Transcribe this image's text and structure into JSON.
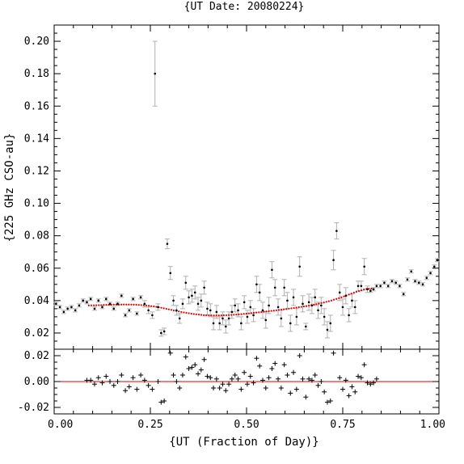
{
  "chart_data": [
    {
      "type": "scatter",
      "panel": "main",
      "title": "{UT Date: 20080224}",
      "ylabel": "{225 GHz CSO-au}",
      "xlim": [
        0.0,
        1.0
      ],
      "ylim": [
        0.01,
        0.21
      ],
      "x_ticks": [
        "0.00",
        "0.25",
        "0.50",
        "0.75",
        "1.00"
      ],
      "y_ticks": [
        "0.02",
        "0.04",
        "0.06",
        "0.08",
        "0.10",
        "0.12",
        "0.14",
        "0.16",
        "0.18",
        "0.20"
      ],
      "grid": false,
      "colors": {
        "points": "#000000",
        "errorbars": "#b0b0b0",
        "fit": "#e00000"
      },
      "points": [
        {
          "x": 0.005,
          "y": 0.038,
          "err": 0.001
        },
        {
          "x": 0.015,
          "y": 0.036,
          "err": 0.001
        },
        {
          "x": 0.025,
          "y": 0.033,
          "err": 0.001
        },
        {
          "x": 0.035,
          "y": 0.035,
          "err": 0.001
        },
        {
          "x": 0.045,
          "y": 0.036,
          "err": 0.001
        },
        {
          "x": 0.055,
          "y": 0.034,
          "err": 0.001
        },
        {
          "x": 0.065,
          "y": 0.037,
          "err": 0.001
        },
        {
          "x": 0.075,
          "y": 0.04,
          "err": 0.001
        },
        {
          "x": 0.085,
          "y": 0.039,
          "err": 0.001
        },
        {
          "x": 0.095,
          "y": 0.041,
          "err": 0.001
        },
        {
          "x": 0.105,
          "y": 0.035,
          "err": 0.001
        },
        {
          "x": 0.115,
          "y": 0.04,
          "err": 0.001
        },
        {
          "x": 0.125,
          "y": 0.036,
          "err": 0.001
        },
        {
          "x": 0.135,
          "y": 0.041,
          "err": 0.001
        },
        {
          "x": 0.145,
          "y": 0.038,
          "err": 0.001
        },
        {
          "x": 0.155,
          "y": 0.035,
          "err": 0.001
        },
        {
          "x": 0.165,
          "y": 0.038,
          "err": 0.001
        },
        {
          "x": 0.175,
          "y": 0.043,
          "err": 0.001
        },
        {
          "x": 0.185,
          "y": 0.031,
          "err": 0.001
        },
        {
          "x": 0.195,
          "y": 0.034,
          "err": 0.001
        },
        {
          "x": 0.205,
          "y": 0.041,
          "err": 0.001
        },
        {
          "x": 0.215,
          "y": 0.032,
          "err": 0.001
        },
        {
          "x": 0.225,
          "y": 0.042,
          "err": 0.001
        },
        {
          "x": 0.235,
          "y": 0.038,
          "err": 0.002
        },
        {
          "x": 0.245,
          "y": 0.034,
          "err": 0.002
        },
        {
          "x": 0.255,
          "y": 0.031,
          "err": 0.002
        },
        {
          "x": 0.262,
          "y": 0.18,
          "err": 0.02
        },
        {
          "x": 0.27,
          "y": 0.036,
          "err": 0.002
        },
        {
          "x": 0.278,
          "y": 0.02,
          "err": 0.002
        },
        {
          "x": 0.286,
          "y": 0.021,
          "err": 0.002
        },
        {
          "x": 0.294,
          "y": 0.075,
          "err": 0.003
        },
        {
          "x": 0.302,
          "y": 0.057,
          "err": 0.004
        },
        {
          "x": 0.31,
          "y": 0.04,
          "err": 0.003
        },
        {
          "x": 0.318,
          "y": 0.034,
          "err": 0.003
        },
        {
          "x": 0.326,
          "y": 0.029,
          "err": 0.003
        },
        {
          "x": 0.334,
          "y": 0.038,
          "err": 0.003
        },
        {
          "x": 0.342,
          "y": 0.051,
          "err": 0.004
        },
        {
          "x": 0.35,
          "y": 0.042,
          "err": 0.004
        },
        {
          "x": 0.358,
          "y": 0.043,
          "err": 0.004
        },
        {
          "x": 0.366,
          "y": 0.045,
          "err": 0.004
        },
        {
          "x": 0.374,
          "y": 0.038,
          "err": 0.004
        },
        {
          "x": 0.382,
          "y": 0.04,
          "err": 0.004
        },
        {
          "x": 0.39,
          "y": 0.048,
          "err": 0.004
        },
        {
          "x": 0.398,
          "y": 0.035,
          "err": 0.004
        },
        {
          "x": 0.406,
          "y": 0.034,
          "err": 0.004
        },
        {
          "x": 0.414,
          "y": 0.026,
          "err": 0.004
        },
        {
          "x": 0.422,
          "y": 0.033,
          "err": 0.004
        },
        {
          "x": 0.43,
          "y": 0.026,
          "err": 0.004
        },
        {
          "x": 0.438,
          "y": 0.029,
          "err": 0.004
        },
        {
          "x": 0.446,
          "y": 0.024,
          "err": 0.004
        },
        {
          "x": 0.454,
          "y": 0.029,
          "err": 0.004
        },
        {
          "x": 0.462,
          "y": 0.033,
          "err": 0.004
        },
        {
          "x": 0.47,
          "y": 0.037,
          "err": 0.004
        },
        {
          "x": 0.478,
          "y": 0.034,
          "err": 0.004
        },
        {
          "x": 0.486,
          "y": 0.026,
          "err": 0.004
        },
        {
          "x": 0.494,
          "y": 0.039,
          "err": 0.004
        },
        {
          "x": 0.502,
          "y": 0.03,
          "err": 0.004
        },
        {
          "x": 0.51,
          "y": 0.036,
          "err": 0.004
        },
        {
          "x": 0.518,
          "y": 0.031,
          "err": 0.004
        },
        {
          "x": 0.526,
          "y": 0.05,
          "err": 0.005
        },
        {
          "x": 0.534,
          "y": 0.045,
          "err": 0.005
        },
        {
          "x": 0.542,
          "y": 0.034,
          "err": 0.005
        },
        {
          "x": 0.55,
          "y": 0.028,
          "err": 0.005
        },
        {
          "x": 0.558,
          "y": 0.037,
          "err": 0.005
        },
        {
          "x": 0.566,
          "y": 0.059,
          "err": 0.005
        },
        {
          "x": 0.574,
          "y": 0.048,
          "err": 0.005
        },
        {
          "x": 0.582,
          "y": 0.036,
          "err": 0.005
        },
        {
          "x": 0.59,
          "y": 0.029,
          "err": 0.005
        },
        {
          "x": 0.598,
          "y": 0.048,
          "err": 0.005
        },
        {
          "x": 0.606,
          "y": 0.04,
          "err": 0.005
        },
        {
          "x": 0.614,
          "y": 0.026,
          "err": 0.005
        },
        {
          "x": 0.622,
          "y": 0.042,
          "err": 0.005
        },
        {
          "x": 0.63,
          "y": 0.03,
          "err": 0.005
        },
        {
          "x": 0.638,
          "y": 0.061,
          "err": 0.006
        },
        {
          "x": 0.646,
          "y": 0.038,
          "err": 0.005
        },
        {
          "x": 0.654,
          "y": 0.024,
          "err": 0.002
        },
        {
          "x": 0.662,
          "y": 0.039,
          "err": 0.005
        },
        {
          "x": 0.67,
          "y": 0.037,
          "err": 0.005
        },
        {
          "x": 0.678,
          "y": 0.042,
          "err": 0.005
        },
        {
          "x": 0.686,
          "y": 0.034,
          "err": 0.005
        },
        {
          "x": 0.694,
          "y": 0.037,
          "err": 0.005
        },
        {
          "x": 0.702,
          "y": 0.03,
          "err": 0.005
        },
        {
          "x": 0.71,
          "y": 0.022,
          "err": 0.005
        },
        {
          "x": 0.718,
          "y": 0.026,
          "err": 0.005
        },
        {
          "x": 0.726,
          "y": 0.065,
          "err": 0.006
        },
        {
          "x": 0.734,
          "y": 0.083,
          "err": 0.005
        },
        {
          "x": 0.742,
          "y": 0.045,
          "err": 0.005
        },
        {
          "x": 0.75,
          "y": 0.036,
          "err": 0.005
        },
        {
          "x": 0.758,
          "y": 0.043,
          "err": 0.005
        },
        {
          "x": 0.766,
          "y": 0.031,
          "err": 0.004
        },
        {
          "x": 0.774,
          "y": 0.04,
          "err": 0.004
        },
        {
          "x": 0.782,
          "y": 0.036,
          "err": 0.004
        },
        {
          "x": 0.79,
          "y": 0.049,
          "err": 0.003
        },
        {
          "x": 0.798,
          "y": 0.049,
          "err": 0.003
        },
        {
          "x": 0.806,
          "y": 0.061,
          "err": 0.005
        },
        {
          "x": 0.814,
          "y": 0.047,
          "err": 0.002
        },
        {
          "x": 0.822,
          "y": 0.046,
          "err": 0.001
        },
        {
          "x": 0.83,
          "y": 0.047,
          "err": 0.001
        },
        {
          "x": 0.838,
          "y": 0.049,
          "err": 0.001
        },
        {
          "x": 0.848,
          "y": 0.049,
          "err": 0.001
        },
        {
          "x": 0.858,
          "y": 0.051,
          "err": 0.001
        },
        {
          "x": 0.868,
          "y": 0.049,
          "err": 0.001
        },
        {
          "x": 0.878,
          "y": 0.052,
          "err": 0.001
        },
        {
          "x": 0.888,
          "y": 0.051,
          "err": 0.001
        },
        {
          "x": 0.898,
          "y": 0.049,
          "err": 0.001
        },
        {
          "x": 0.908,
          "y": 0.044,
          "err": 0.001
        },
        {
          "x": 0.918,
          "y": 0.053,
          "err": 0.001
        },
        {
          "x": 0.928,
          "y": 0.058,
          "err": 0.001
        },
        {
          "x": 0.938,
          "y": 0.052,
          "err": 0.001
        },
        {
          "x": 0.948,
          "y": 0.051,
          "err": 0.001
        },
        {
          "x": 0.958,
          "y": 0.05,
          "err": 0.001
        },
        {
          "x": 0.968,
          "y": 0.054,
          "err": 0.001
        },
        {
          "x": 0.978,
          "y": 0.057,
          "err": 0.001
        },
        {
          "x": 0.988,
          "y": 0.061,
          "err": 0.001
        },
        {
          "x": 0.996,
          "y": 0.065,
          "err": 0.001
        }
      ],
      "fit": {
        "x": [
          0.09,
          0.12,
          0.15,
          0.18,
          0.21,
          0.24,
          0.27,
          0.3,
          0.33,
          0.36,
          0.39,
          0.42,
          0.45,
          0.48,
          0.51,
          0.54,
          0.57,
          0.6,
          0.63,
          0.66,
          0.69,
          0.72,
          0.75,
          0.78,
          0.81,
          0.83
        ],
        "y": [
          0.037,
          0.0372,
          0.0375,
          0.0376,
          0.0375,
          0.037,
          0.036,
          0.0345,
          0.033,
          0.0318,
          0.031,
          0.0308,
          0.031,
          0.0315,
          0.0322,
          0.033,
          0.0338,
          0.0347,
          0.0357,
          0.0368,
          0.0382,
          0.04,
          0.0423,
          0.045,
          0.0472,
          0.0475
        ]
      }
    },
    {
      "type": "scatter",
      "panel": "residuals",
      "xlabel": "{UT (Fraction of Day)}",
      "xlim": [
        0.0,
        1.0
      ],
      "ylim": [
        -0.025,
        0.025
      ],
      "x_ticks": [
        "0.00",
        "0.25",
        "0.50",
        "0.75",
        "1.00"
      ],
      "y_ticks": [
        "-0.02",
        "0.00",
        "0.02"
      ],
      "zero_line": 0.0,
      "colors": {
        "points": "#000000",
        "zero_line": "#e00000"
      },
      "points": [
        {
          "x": 0.085,
          "y": 0.001
        },
        {
          "x": 0.095,
          "y": 0.001
        },
        {
          "x": 0.105,
          "y": -0.002
        },
        {
          "x": 0.115,
          "y": 0.003
        },
        {
          "x": 0.125,
          "y": -0.001
        },
        {
          "x": 0.135,
          "y": 0.004
        },
        {
          "x": 0.145,
          "y": 0.0
        },
        {
          "x": 0.155,
          "y": -0.003
        },
        {
          "x": 0.165,
          "y": 0.0
        },
        {
          "x": 0.175,
          "y": 0.005
        },
        {
          "x": 0.185,
          "y": -0.007
        },
        {
          "x": 0.195,
          "y": -0.004
        },
        {
          "x": 0.205,
          "y": 0.003
        },
        {
          "x": 0.215,
          "y": -0.006
        },
        {
          "x": 0.225,
          "y": 0.005
        },
        {
          "x": 0.235,
          "y": 0.001
        },
        {
          "x": 0.245,
          "y": -0.003
        },
        {
          "x": 0.255,
          "y": -0.006
        },
        {
          "x": 0.27,
          "y": 0.0
        },
        {
          "x": 0.278,
          "y": -0.016
        },
        {
          "x": 0.286,
          "y": -0.015
        },
        {
          "x": 0.302,
          "y": 0.022
        },
        {
          "x": 0.31,
          "y": 0.005
        },
        {
          "x": 0.318,
          "y": 0.0
        },
        {
          "x": 0.326,
          "y": -0.005
        },
        {
          "x": 0.334,
          "y": 0.005
        },
        {
          "x": 0.342,
          "y": 0.019
        },
        {
          "x": 0.35,
          "y": 0.01
        },
        {
          "x": 0.358,
          "y": 0.011
        },
        {
          "x": 0.366,
          "y": 0.013
        },
        {
          "x": 0.374,
          "y": 0.006
        },
        {
          "x": 0.382,
          "y": 0.009
        },
        {
          "x": 0.39,
          "y": 0.017
        },
        {
          "x": 0.398,
          "y": 0.004
        },
        {
          "x": 0.406,
          "y": 0.003
        },
        {
          "x": 0.414,
          "y": -0.005
        },
        {
          "x": 0.422,
          "y": 0.002
        },
        {
          "x": 0.43,
          "y": -0.005
        },
        {
          "x": 0.438,
          "y": -0.002
        },
        {
          "x": 0.446,
          "y": -0.007
        },
        {
          "x": 0.454,
          "y": -0.002
        },
        {
          "x": 0.462,
          "y": 0.002
        },
        {
          "x": 0.47,
          "y": 0.005
        },
        {
          "x": 0.478,
          "y": 0.002
        },
        {
          "x": 0.486,
          "y": -0.006
        },
        {
          "x": 0.494,
          "y": 0.007
        },
        {
          "x": 0.502,
          "y": -0.002
        },
        {
          "x": 0.51,
          "y": 0.004
        },
        {
          "x": 0.518,
          "y": -0.001
        },
        {
          "x": 0.526,
          "y": 0.018
        },
        {
          "x": 0.534,
          "y": 0.012
        },
        {
          "x": 0.542,
          "y": 0.001
        },
        {
          "x": 0.55,
          "y": -0.005
        },
        {
          "x": 0.558,
          "y": 0.003
        },
        {
          "x": 0.566,
          "y": 0.01
        },
        {
          "x": 0.574,
          "y": 0.014
        },
        {
          "x": 0.582,
          "y": 0.002
        },
        {
          "x": 0.59,
          "y": -0.005
        },
        {
          "x": 0.598,
          "y": 0.013
        },
        {
          "x": 0.606,
          "y": 0.005
        },
        {
          "x": 0.614,
          "y": -0.009
        },
        {
          "x": 0.622,
          "y": 0.007
        },
        {
          "x": 0.63,
          "y": -0.006
        },
        {
          "x": 0.638,
          "y": 0.02
        },
        {
          "x": 0.646,
          "y": 0.002
        },
        {
          "x": 0.654,
          "y": -0.012
        },
        {
          "x": 0.662,
          "y": 0.002
        },
        {
          "x": 0.67,
          "y": 0.001
        },
        {
          "x": 0.678,
          "y": 0.005
        },
        {
          "x": 0.686,
          "y": -0.003
        },
        {
          "x": 0.694,
          "y": 0.0
        },
        {
          "x": 0.702,
          "y": -0.008
        },
        {
          "x": 0.71,
          "y": -0.016
        },
        {
          "x": 0.718,
          "y": -0.015
        },
        {
          "x": 0.726,
          "y": 0.022
        },
        {
          "x": 0.742,
          "y": 0.003
        },
        {
          "x": 0.75,
          "y": -0.006
        },
        {
          "x": 0.758,
          "y": 0.001
        },
        {
          "x": 0.766,
          "y": -0.011
        },
        {
          "x": 0.774,
          "y": -0.004
        },
        {
          "x": 0.782,
          "y": -0.008
        },
        {
          "x": 0.79,
          "y": 0.004
        },
        {
          "x": 0.798,
          "y": 0.003
        },
        {
          "x": 0.806,
          "y": 0.013
        },
        {
          "x": 0.814,
          "y": -0.001
        },
        {
          "x": 0.822,
          "y": -0.002
        },
        {
          "x": 0.83,
          "y": -0.001
        },
        {
          "x": 0.838,
          "y": 0.002
        }
      ]
    }
  ]
}
